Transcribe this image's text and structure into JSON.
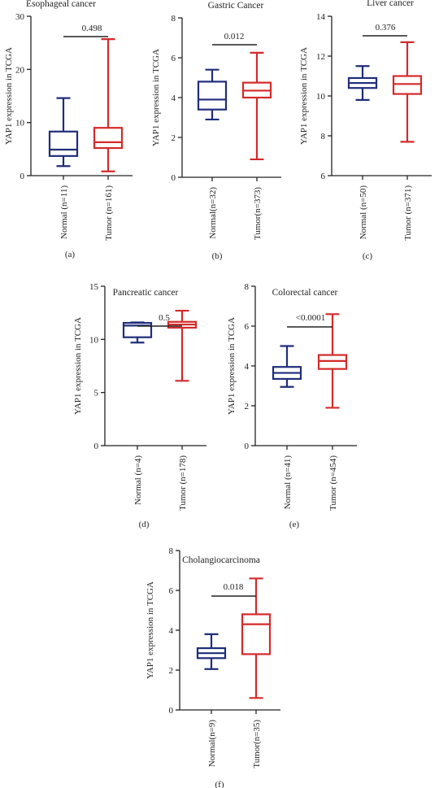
{
  "colors": {
    "normal": "#1f2d7a",
    "tumor": "#d42a2a",
    "axis": "#222222"
  },
  "chart_data": [
    {
      "type": "boxplot",
      "title": "Esophageal cancer",
      "ylabel": "YAP1 expression in TCGA",
      "ylim": [
        0,
        30
      ],
      "yticks": [
        "0",
        "10",
        "20",
        "30"
      ],
      "categories": [
        "Normal (n=11)",
        "Tumor (n=161)"
      ],
      "p_value": "0.498",
      "panel_label": "(a)",
      "boxes": [
        {
          "group": "normal",
          "min": 1.8,
          "q1": 3.7,
          "median": 4.9,
          "q3": 8.3,
          "max": 14.6
        },
        {
          "group": "tumor",
          "min": 0.8,
          "q1": 5.2,
          "median": 6.3,
          "q3": 9.0,
          "max": 25.7
        }
      ]
    },
    {
      "type": "boxplot",
      "title": "Gastric Cancer",
      "ylabel": "YAP1 expression in TCGA",
      "ylim": [
        0,
        8
      ],
      "yticks": [
        "0",
        "2",
        "4",
        "6",
        "8"
      ],
      "categories": [
        "Normal(n=32)",
        "Tumor(n=373)"
      ],
      "p_value": "0.012",
      "panel_label": "(b)",
      "boxes": [
        {
          "group": "normal",
          "min": 2.9,
          "q1": 3.4,
          "median": 3.9,
          "q3": 4.8,
          "max": 5.4
        },
        {
          "group": "tumor",
          "min": 0.9,
          "q1": 4.0,
          "median": 4.35,
          "q3": 4.75,
          "max": 6.25
        }
      ]
    },
    {
      "type": "boxplot",
      "title": "Liver cancer",
      "ylabel": "YAP1 expression in TCGA",
      "ylim": [
        6,
        14
      ],
      "yticks": [
        "6",
        "8",
        "10",
        "12",
        "14"
      ],
      "categories": [
        "Normal (n=50)",
        "Tumor (n=371)"
      ],
      "p_value": "0.376",
      "panel_label": "(c)",
      "boxes": [
        {
          "group": "normal",
          "min": 9.8,
          "q1": 10.4,
          "median": 10.65,
          "q3": 10.9,
          "max": 11.5
        },
        {
          "group": "tumor",
          "min": 7.7,
          "q1": 10.1,
          "median": 10.6,
          "q3": 11.0,
          "max": 12.7
        }
      ]
    },
    {
      "type": "boxplot",
      "title": "Pancreatic cancer",
      "ylabel": "YAP1 expression in TCGA",
      "ylim": [
        0,
        15
      ],
      "yticks": [
        "0",
        "5",
        "10",
        "15"
      ],
      "categories": [
        "Normal (n=4)",
        "Tumor (n=178)"
      ],
      "p_value": "0.5",
      "panel_label": "(d)",
      "boxes": [
        {
          "group": "normal",
          "min": 9.7,
          "q1": 10.2,
          "median": 11.3,
          "q3": 11.55,
          "max": 11.6
        },
        {
          "group": "tumor",
          "min": 6.1,
          "q1": 11.1,
          "median": 11.4,
          "q3": 11.65,
          "max": 12.7
        }
      ]
    },
    {
      "type": "boxplot",
      "title": "Colorectal cancer",
      "ylabel": "YAP1 expression in TCGA",
      "ylim": [
        0,
        8
      ],
      "yticks": [
        "0",
        "2",
        "4",
        "6",
        "8"
      ],
      "categories": [
        "Normal (n=41)",
        "Tumor (n=454)"
      ],
      "p_value": "<0.0001",
      "panel_label": "(e)",
      "boxes": [
        {
          "group": "normal",
          "min": 2.95,
          "q1": 3.35,
          "median": 3.65,
          "q3": 3.95,
          "max": 5.0
        },
        {
          "group": "tumor",
          "min": 1.9,
          "q1": 3.85,
          "median": 4.25,
          "q3": 4.55,
          "max": 6.6
        }
      ]
    },
    {
      "type": "boxplot",
      "title": "Cholangiocarcinoma",
      "ylabel": "YAP1 expression in TCGA",
      "ylim": [
        0,
        8
      ],
      "yticks": [
        "0",
        "2",
        "4",
        "6",
        "8"
      ],
      "categories": [
        "Normal(n=9)",
        "Tumor(n=35)"
      ],
      "p_value": "0.018",
      "panel_label": "(f)",
      "boxes": [
        {
          "group": "normal",
          "min": 2.05,
          "q1": 2.6,
          "median": 2.85,
          "q3": 3.1,
          "max": 3.8
        },
        {
          "group": "tumor",
          "min": 0.6,
          "q1": 2.8,
          "median": 4.3,
          "q3": 4.8,
          "max": 6.6
        }
      ]
    }
  ]
}
